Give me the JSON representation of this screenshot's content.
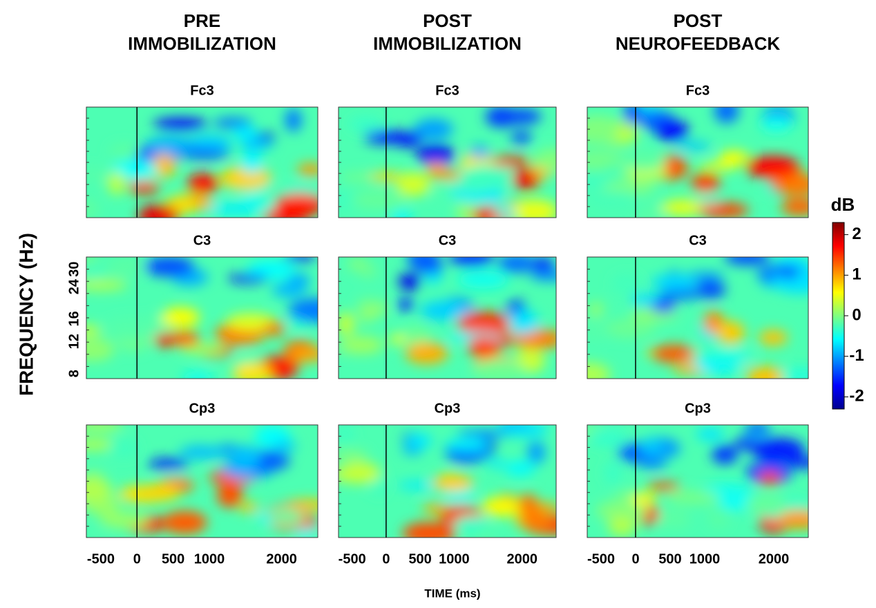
{
  "column_titles": [
    [
      "PRE",
      "IMMOBILIZATION"
    ],
    [
      "POST",
      "IMMOBILIZATION"
    ],
    [
      "POST",
      "NEUROFEEDBACK"
    ]
  ],
  "channels": [
    "Fc3",
    "C3",
    "Cp3"
  ],
  "x_axis": {
    "label": "TIME (ms)",
    "ticks": [
      -500,
      0,
      500,
      1000,
      2000
    ],
    "lim": [
      -700,
      2500
    ]
  },
  "y_axis": {
    "label": "FREQUENCY (Hz)",
    "ticks": [
      8,
      12,
      16,
      24,
      30
    ],
    "lim": [
      7.5,
      35
    ],
    "log": true
  },
  "colorbar": {
    "label": "dB",
    "ticks": [
      2,
      1,
      0,
      -1,
      -2
    ],
    "lim": [
      -2.3,
      2.3
    ]
  }
}
